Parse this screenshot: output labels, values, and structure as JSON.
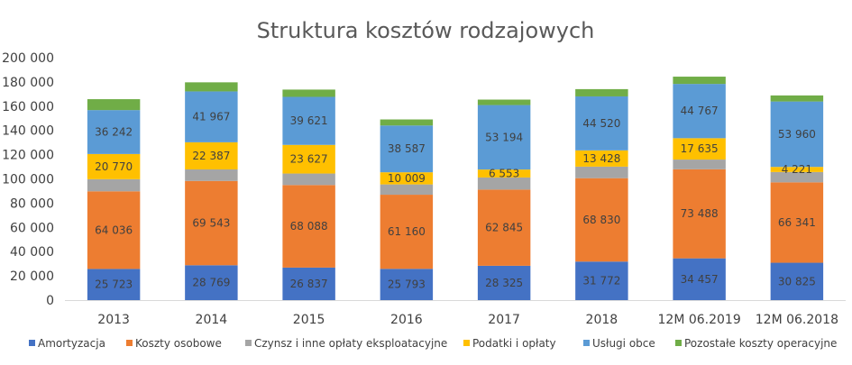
{
  "chart_data": {
    "type": "bar",
    "stacked": true,
    "title": "Struktura kosztów rodzajowych",
    "xlabel": "",
    "ylabel": "",
    "ylim": [
      0,
      200000
    ],
    "yticks": [
      0,
      20000,
      40000,
      60000,
      80000,
      100000,
      120000,
      140000,
      160000,
      180000,
      200000
    ],
    "ytick_labels": [
      "0",
      "20 000",
      "40 000",
      "60 000",
      "80 000",
      "100 000",
      "120 000",
      "140 000",
      "160 000",
      "180 000",
      "200 000"
    ],
    "grid": false,
    "legend_position": "bottom",
    "categories": [
      "2013",
      "2014",
      "2015",
      "2016",
      "2017",
      "2018",
      "12M 06.2019",
      "12M 06.2018"
    ],
    "series": [
      {
        "name": "Amortyzacja",
        "color": "#4472c4",
        "values": [
          25723,
          28769,
          26837,
          25793,
          28325,
          31772,
          34457,
          30825
        ],
        "labels": [
          "25 723",
          "28 769",
          "26 837",
          "25 793",
          "28 325",
          "31 772",
          "34 457",
          "30 825"
        ]
      },
      {
        "name": "Koszty osobowe",
        "color": "#ed7d31",
        "values": [
          64036,
          69543,
          68088,
          61160,
          62845,
          68830,
          73488,
          66341
        ],
        "labels": [
          "64 036",
          "69 543",
          "68 088",
          "61 160",
          "62 845",
          "68 830",
          "73 488",
          "66 341"
        ]
      },
      {
        "name": "Czynsz i inne opłaty eksploatacyjne",
        "color": "#a5a5a5",
        "values": [
          10000,
          9500,
          9500,
          8500,
          10000,
          9500,
          8000,
          8500
        ],
        "labels": [
          "",
          "",
          "",
          "",
          "",
          "",
          "",
          ""
        ]
      },
      {
        "name": "Podatki i opłaty",
        "color": "#ffc000",
        "values": [
          20770,
          22387,
          23627,
          10009,
          6553,
          13428,
          17635,
          4221
        ],
        "labels": [
          "20 770",
          "22 387",
          "23 627",
          "10 009",
          "6 553",
          "13 428",
          "17 635",
          "4 221"
        ]
      },
      {
        "name": "Usługi obce",
        "color": "#5b9bd5",
        "values": [
          36242,
          41967,
          39621,
          38587,
          53194,
          44520,
          44767,
          53960
        ],
        "labels": [
          "36 242",
          "41 967",
          "39 621",
          "38 587",
          "53 194",
          "44 520",
          "44 767",
          "53 960"
        ]
      },
      {
        "name": "Pozostałe koszty operacyjne",
        "color": "#70ad47",
        "values": [
          9000,
          7500,
          6000,
          5000,
          4500,
          6000,
          6000,
          5000
        ],
        "labels": [
          "",
          "",
          "",
          "",
          "",
          "",
          "",
          ""
        ]
      }
    ]
  }
}
